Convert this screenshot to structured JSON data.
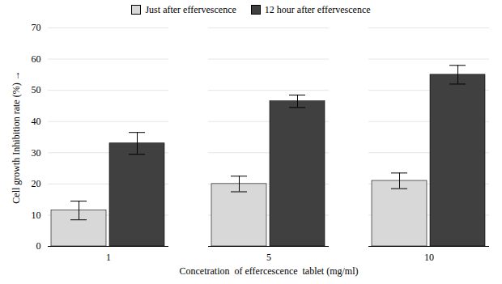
{
  "chart_data": {
    "type": "bar",
    "categories": [
      "1",
      "5",
      "10"
    ],
    "series": [
      {
        "name": "Just after effervescence",
        "color": "#d8d8d8",
        "values": [
          11.5,
          20.0,
          21.0
        ],
        "errors": [
          3.0,
          2.5,
          2.5
        ]
      },
      {
        "name": "12 hour after effervescence",
        "color": "#404040",
        "values": [
          33.0,
          46.5,
          55.0
        ],
        "errors": [
          3.5,
          2.0,
          3.0
        ]
      }
    ],
    "xlabel": "Concetration  of effercescence  tablet (mg/ml)",
    "ylabel": "Cell growth Inhibition rate (%)",
    "ylim": [
      0,
      70
    ],
    "yticks": [
      0,
      10,
      20,
      30,
      40,
      50,
      60,
      70
    ],
    "grid": true,
    "legend": "top"
  }
}
